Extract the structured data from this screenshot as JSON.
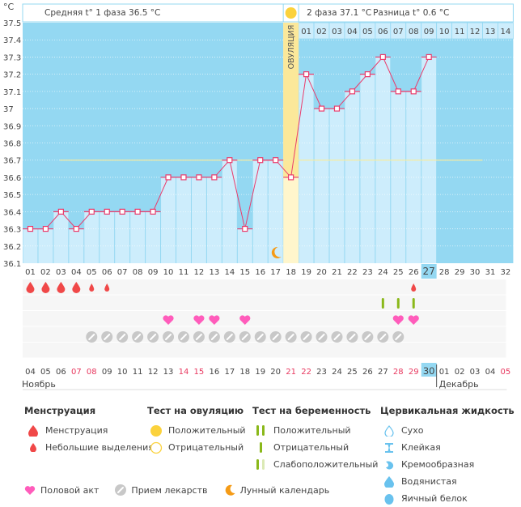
{
  "header": {
    "unit": "°C",
    "phase1_label": "Средняя t° 1 фаза",
    "phase1_value": "36.5 °C",
    "phase2_label": "2 фаза",
    "phase2_value": "37.1 °C",
    "diff_label": "Разница t°",
    "diff_value": "0.6 °C",
    "ovulation_label": "ОВУЛЯЦИЯ"
  },
  "colors": {
    "bg_blue": "#94d8f2",
    "bar_light": "#cdedfc",
    "ovulation_yellow": "#fbe89a",
    "line_pink": "#ea3c6c",
    "coverline": "#f5eba0",
    "weekend_red": "#e8385f",
    "today_highlight": "#94d8f2"
  },
  "chart_data": {
    "type": "line",
    "title": "",
    "ylabel": "°C",
    "xlabel": "",
    "ylim": [
      36.1,
      37.5
    ],
    "yticks": [
      "37.5",
      "37.4",
      "37.3",
      "37.2",
      "37.1",
      "37",
      "36.9",
      "36.8",
      "36.7",
      "36.6",
      "36.5",
      "36.4",
      "36.3",
      "36.2",
      "36.1"
    ],
    "cycle_days": [
      "01",
      "02",
      "03",
      "04",
      "05",
      "06",
      "07",
      "08",
      "09",
      "10",
      "11",
      "12",
      "13",
      "14",
      "15",
      "16",
      "17",
      "18",
      "19",
      "20",
      "21",
      "22",
      "23",
      "24",
      "25",
      "26",
      "27",
      "28",
      "29",
      "30",
      "31",
      "32"
    ],
    "post_ovulation_days": [
      "01",
      "02",
      "03",
      "04",
      "05",
      "06",
      "07",
      "08",
      "09",
      "10",
      "11",
      "12",
      "13",
      "14"
    ],
    "series": [
      {
        "name": "BBT",
        "values": [
          36.3,
          36.3,
          36.4,
          36.3,
          36.4,
          36.4,
          36.4,
          36.4,
          36.4,
          36.6,
          36.6,
          36.6,
          36.6,
          36.7,
          36.3,
          36.7,
          36.7,
          36.6,
          37.2,
          37.0,
          37.0,
          37.1,
          37.2,
          37.3,
          37.1,
          37.1,
          37.3
        ]
      }
    ],
    "coverline": 36.7,
    "ovulation_day": 18,
    "current_day": 27,
    "calendar_dates": [
      "04",
      "05",
      "06",
      "07",
      "08",
      "09",
      "10",
      "11",
      "12",
      "13",
      "14",
      "15",
      "16",
      "17",
      "18",
      "19",
      "20",
      "21",
      "22",
      "23",
      "24",
      "25",
      "26",
      "27",
      "28",
      "29",
      "30",
      "01",
      "02",
      "03",
      "04",
      "05"
    ],
    "weekend_dates_idx": [
      3,
      4,
      10,
      11,
      17,
      18,
      24,
      25,
      31
    ],
    "month_labels": [
      {
        "label": "Ноябрь",
        "start_idx": 0
      },
      {
        "label": "Декабрь",
        "start_idx": 27
      }
    ],
    "moon_day": 17,
    "ovulation_test_positive_day": 18,
    "markers": {
      "menstruation": [
        1,
        2,
        3,
        4
      ],
      "spotting": [
        5,
        6,
        26
      ],
      "pregnancy_test_negative": [
        24,
        25,
        26
      ],
      "intercourse": [
        10,
        12,
        13,
        15,
        25,
        26
      ],
      "medication": [
        5,
        6,
        7,
        8,
        9,
        10,
        11,
        12,
        13,
        14,
        15,
        16,
        17,
        18,
        19,
        20,
        21,
        22,
        23,
        24,
        25
      ]
    }
  },
  "legend": {
    "menstruation": {
      "title": "Менструация",
      "items": [
        "Менструация",
        "Небольшие выделения"
      ]
    },
    "ovulation_test": {
      "title": "Тест на овуляцию",
      "items": [
        "Положительный",
        "Отрицательный"
      ]
    },
    "pregnancy_test": {
      "title": "Тест на беременность",
      "items": [
        "Положительный",
        "Отрицательный",
        "Слабоположительный"
      ]
    },
    "cervical_fluid": {
      "title": "Цервикальная жидкость",
      "items": [
        "Сухо",
        "Клейкая",
        "Кремообразная",
        "Водянистая",
        "Яичный белок"
      ]
    },
    "bottom": [
      "Половой акт",
      "Прием лекарств",
      "Лунный календарь"
    ]
  }
}
